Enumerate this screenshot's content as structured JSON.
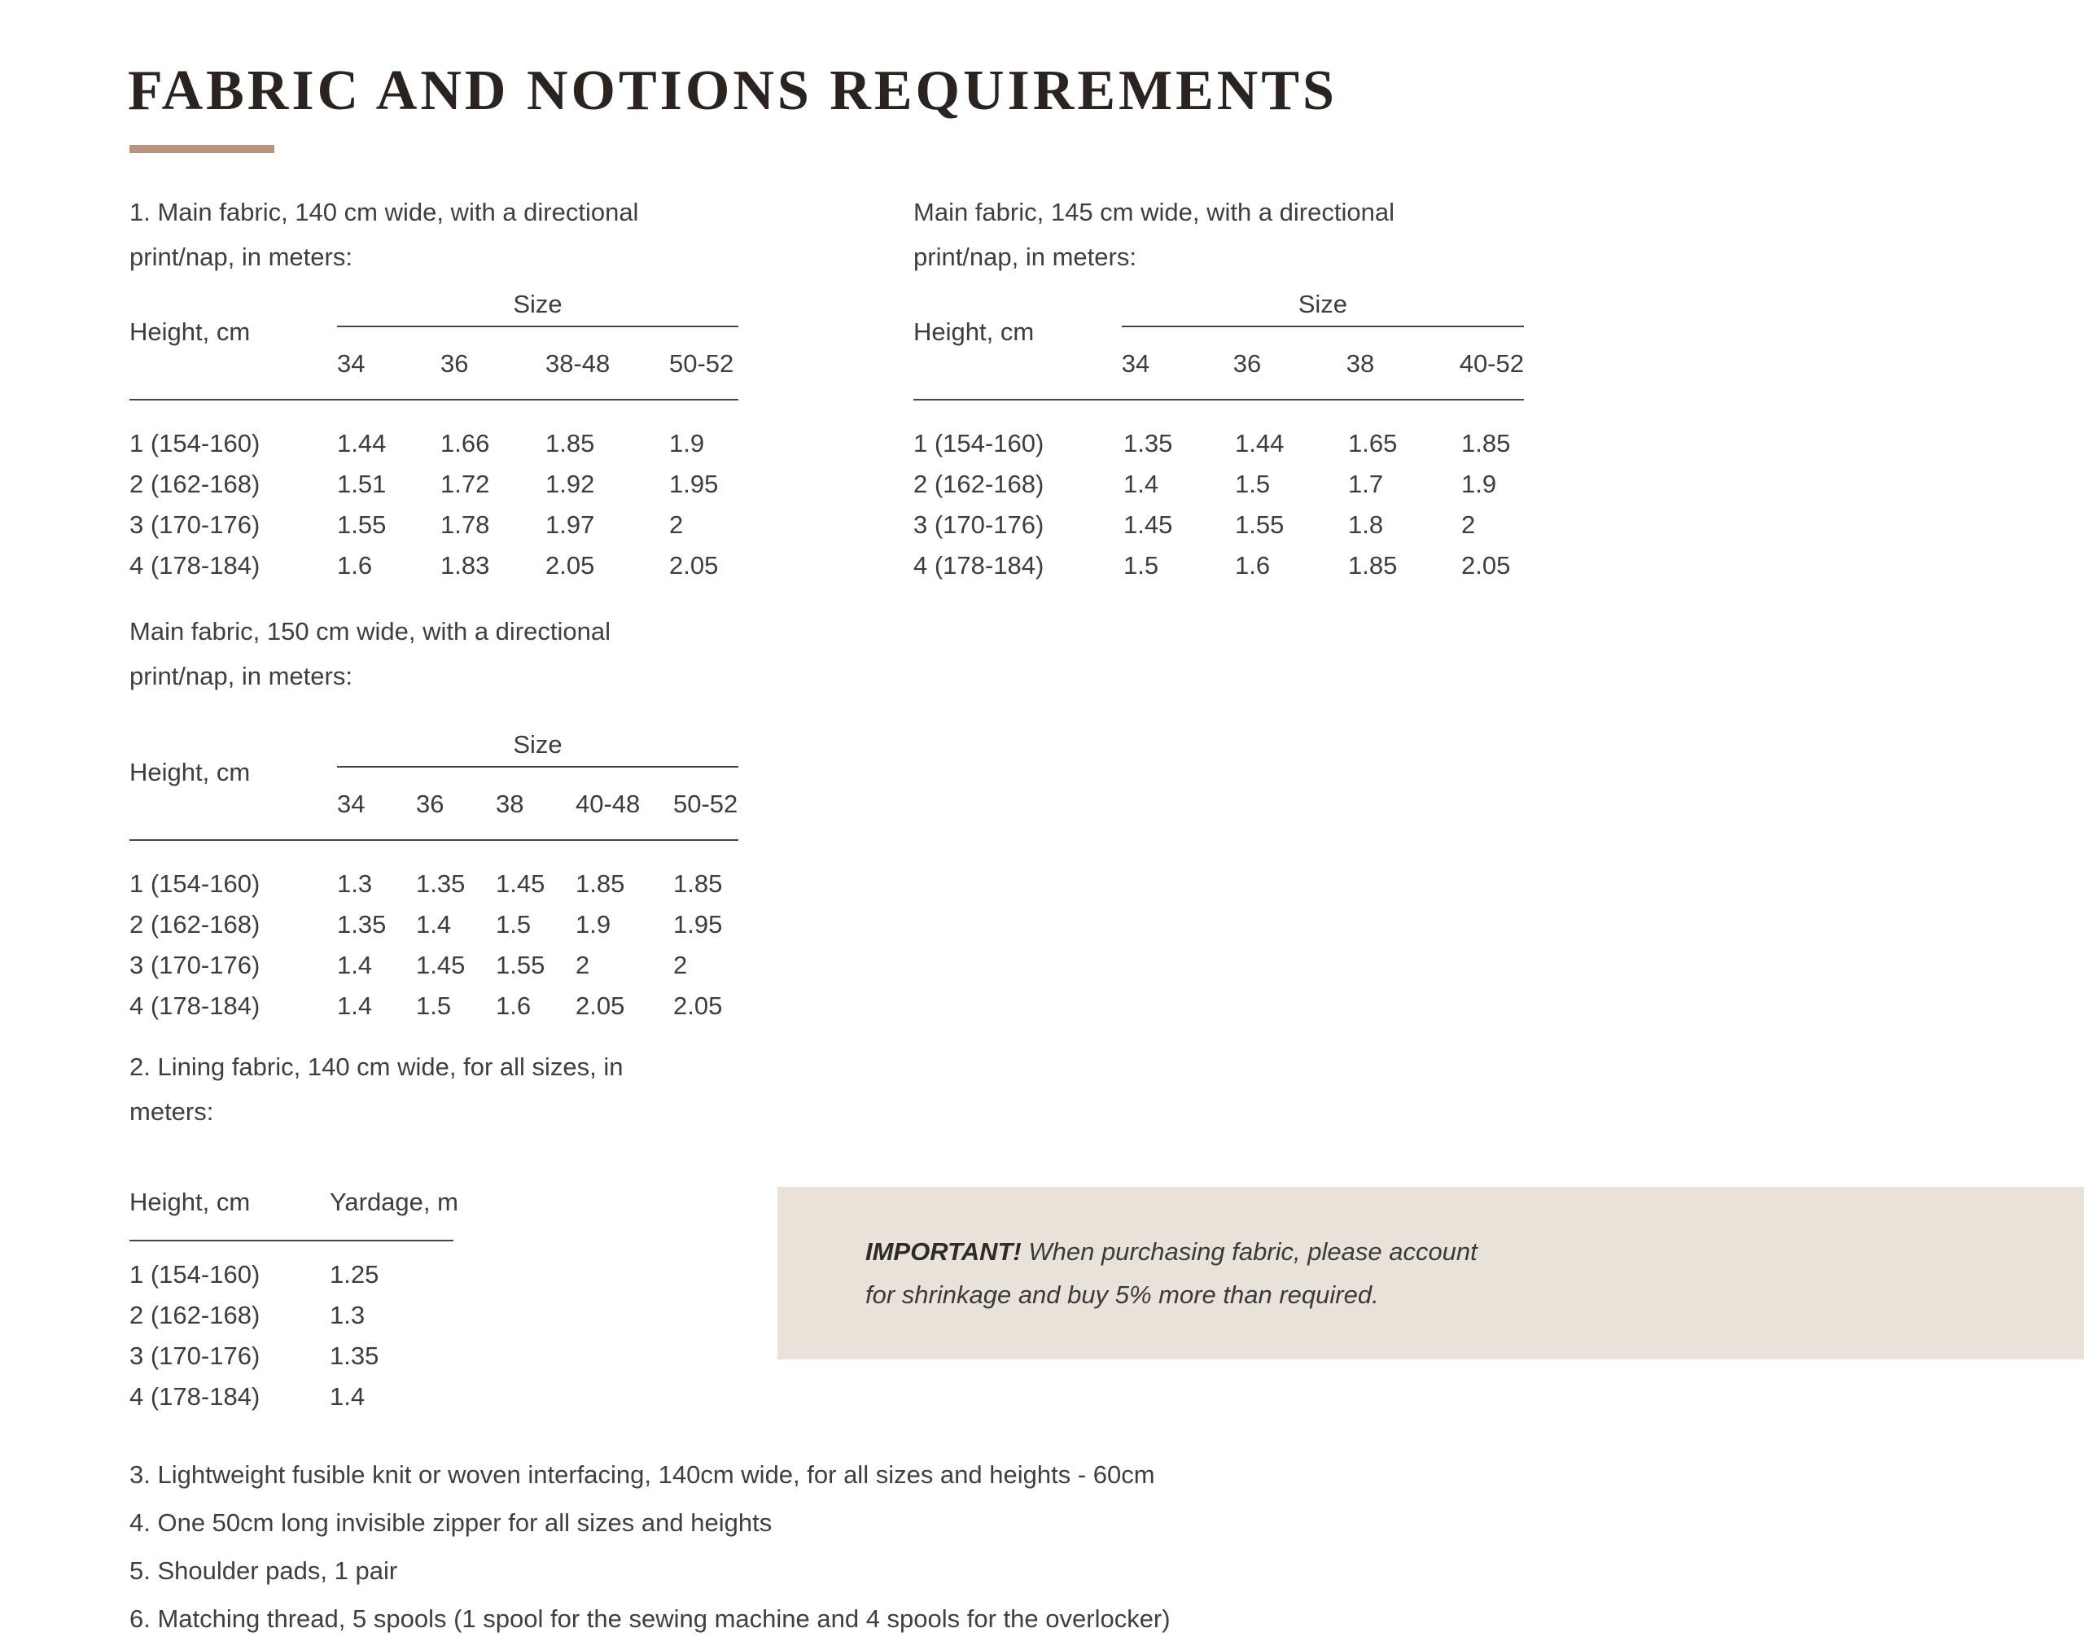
{
  "colors": {
    "accent": "#b9947f",
    "callout_bg": "#e9e2d9"
  },
  "page": {
    "title": "FABRIC AND NOTIONS REQUIREMENTS"
  },
  "sections": {
    "fabric140": {
      "intro_lines": [
        "1. Main fabric, 140 cm wide, with a directional",
        "print/nap, in meters:"
      ],
      "table": {
        "row_header": "Height, cm",
        "col_group": "Size",
        "columns": [
          "34",
          "36",
          "38-48",
          "50-52"
        ],
        "rows": [
          {
            "label": "1 (154-160)",
            "values": [
              "1.44",
              "1.66",
              "1.85",
              "1.9"
            ]
          },
          {
            "label": "2 (162-168)",
            "values": [
              "1.51",
              "1.72",
              "1.92",
              "1.95"
            ]
          },
          {
            "label": "3 (170-176)",
            "values": [
              "1.55",
              "1.78",
              "1.97",
              "2"
            ]
          },
          {
            "label": "4 (178-184)",
            "values": [
              "1.6",
              "1.83",
              "2.05",
              "2.05"
            ]
          }
        ]
      }
    },
    "fabric145": {
      "intro_lines": [
        "Main fabric, 145 cm wide, with a directional",
        "print/nap, in meters:"
      ],
      "table": {
        "row_header": "Height, cm",
        "col_group": "Size",
        "columns": [
          "34",
          "36",
          "38",
          "40-52"
        ],
        "rows": [
          {
            "label": "1 (154-160)",
            "values": [
              "1.35",
              "1.44",
              "1.65",
              "1.85"
            ]
          },
          {
            "label": "2 (162-168)",
            "values": [
              "1.4",
              "1.5",
              "1.7",
              "1.9"
            ]
          },
          {
            "label": "3 (170-176)",
            "values": [
              "1.45",
              "1.55",
              "1.8",
              "2"
            ]
          },
          {
            "label": "4 (178-184)",
            "values": [
              "1.5",
              "1.6",
              "1.85",
              "2.05"
            ]
          }
        ]
      }
    },
    "fabric150": {
      "intro_lines": [
        "Main fabric, 150 cm wide, with a directional",
        "print/nap, in meters:"
      ],
      "table": {
        "row_header": "Height, cm",
        "col_group": "Size",
        "columns": [
          "34",
          "36",
          "38",
          "40-48",
          "50-52"
        ],
        "rows": [
          {
            "label": "1 (154-160)",
            "values": [
              "1.3",
              "1.35",
              "1.45",
              "1.85",
              "1.85"
            ]
          },
          {
            "label": "2 (162-168)",
            "values": [
              "1.35",
              "1.4",
              "1.5",
              "1.9",
              "1.95"
            ]
          },
          {
            "label": "3 (170-176)",
            "values": [
              "1.4",
              "1.45",
              "1.55",
              "2",
              "2"
            ]
          },
          {
            "label": "4 (178-184)",
            "values": [
              "1.4",
              "1.5",
              "1.6",
              "2.05",
              "2.05"
            ]
          }
        ]
      }
    },
    "lining": {
      "intro_lines": [
        "2. Lining fabric, 140 cm wide, for all sizes, in",
        "meters:"
      ],
      "table": {
        "columns": [
          "Height, cm",
          "Yardage, m"
        ],
        "rows": [
          [
            "1 (154-160)",
            "1.25"
          ],
          [
            "2 (162-168)",
            "1.3"
          ],
          [
            "3 (170-176)",
            "1.35"
          ],
          [
            "4 (178-184)",
            "1.4"
          ]
        ]
      }
    },
    "important": {
      "label": "IMPORTANT!",
      "line1_rest": " When purchasing fabric, please account",
      "line2": "for shrinkage and buy 5% more than required."
    },
    "notions": [
      "3. Lightweight fusible knit or woven interfacing, 140cm wide, for all sizes and heights - 60cm",
      "4. One 50cm long invisible zipper for all sizes and heights",
      "5. Shoulder pads, 1 pair",
      "6. Matching thread, 5 spools (1 spool for the sewing machine and 4 spools for the overlocker)"
    ]
  }
}
